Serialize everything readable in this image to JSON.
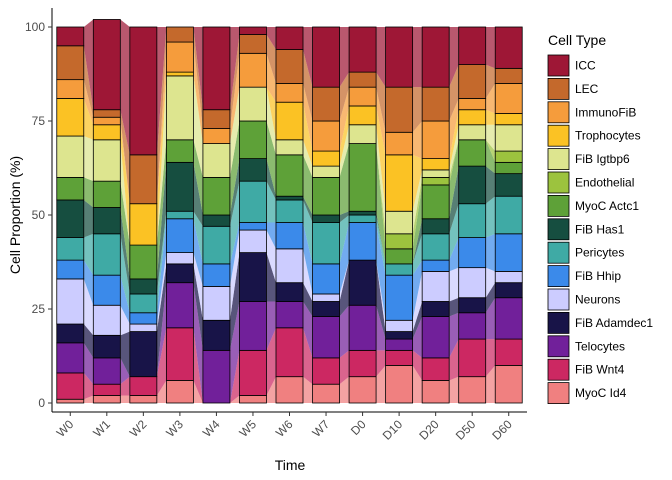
{
  "chart_data": {
    "type": "bar",
    "subtype": "stacked-100-percent-with-alluvial-bands",
    "title": "",
    "xlabel": "Time",
    "ylabel": "Cell Proportion (%)",
    "ylim": [
      0,
      100
    ],
    "yticks": [
      0,
      25,
      50,
      75,
      100
    ],
    "grid": false,
    "legend": {
      "title": "Cell Type",
      "placement": "right"
    },
    "categories": [
      "W0",
      "W1",
      "W2",
      "W3",
      "W4",
      "W5",
      "W6",
      "W7",
      "D0",
      "D10",
      "D20",
      "D50",
      "D60"
    ],
    "series": [
      {
        "name": "MyoC Id4",
        "color": "#F08080",
        "values": [
          1,
          2,
          2,
          6,
          0,
          2,
          7,
          5,
          7,
          10,
          6,
          7,
          10
        ]
      },
      {
        "name": "FiB Wnt4",
        "color": "#CC2862",
        "values": [
          7,
          3,
          5,
          14,
          0,
          12,
          13,
          7,
          7,
          4,
          6,
          10,
          7
        ]
      },
      {
        "name": "Telocytes",
        "color": "#71209A",
        "values": [
          8,
          7,
          0,
          12,
          14,
          13,
          7,
          11,
          12,
          3,
          11,
          7,
          11
        ]
      },
      {
        "name": "FiB Adamdec1",
        "color": "#181448",
        "values": [
          5,
          6,
          12,
          5,
          8,
          13,
          5,
          4,
          12,
          2,
          4,
          4,
          4
        ]
      },
      {
        "name": "Neurons",
        "color": "#CCCCFF",
        "values": [
          12,
          8,
          2,
          3,
          9,
          6,
          9,
          2,
          0,
          3,
          8,
          8,
          3
        ]
      },
      {
        "name": "FiB Hhip",
        "color": "#3B8AEA",
        "values": [
          5,
          8,
          3,
          9,
          6,
          2,
          7,
          8,
          10,
          12,
          3,
          8,
          10
        ]
      },
      {
        "name": "Pericytes",
        "color": "#3FAAA5",
        "values": [
          6,
          11,
          5,
          2,
          10,
          11,
          6,
          11,
          2,
          3,
          7,
          9,
          10
        ]
      },
      {
        "name": "FiB Has1",
        "color": "#164E40",
        "values": [
          10,
          7,
          4,
          13,
          3,
          6,
          1,
          2,
          1,
          0,
          4,
          10,
          6
        ]
      },
      {
        "name": "MyoC Actc1",
        "color": "#5EA138",
        "values": [
          6,
          7,
          9,
          6,
          10,
          10,
          11,
          10,
          18,
          4,
          9,
          7,
          3
        ]
      },
      {
        "name": "Endothelial",
        "color": "#9CC33E",
        "values": [
          0,
          0,
          0,
          0,
          0,
          0,
          0,
          0,
          0,
          4,
          2,
          0,
          3
        ]
      },
      {
        "name": "FiB Igtbp6",
        "color": "#DDE58F",
        "values": [
          11,
          11,
          0,
          17,
          9,
          9,
          4,
          3,
          5,
          6,
          2,
          4,
          7
        ]
      },
      {
        "name": "Trophocytes",
        "color": "#FBC224",
        "values": [
          10,
          4,
          11,
          1,
          0,
          0,
          10,
          4,
          5,
          15,
          3,
          4,
          3
        ]
      },
      {
        "name": "ImmunoFiB",
        "color": "#F59C3C",
        "values": [
          5,
          2,
          0,
          8,
          4,
          9,
          5,
          8,
          5,
          6,
          10,
          3,
          8
        ]
      },
      {
        "name": "LEC",
        "color": "#C4692C",
        "values": [
          9,
          2,
          13,
          4,
          5,
          5,
          9,
          9,
          4,
          12,
          9,
          9,
          4
        ]
      },
      {
        "name": "ICC",
        "color": "#9E1736",
        "values": [
          5,
          24,
          34,
          0,
          22,
          2,
          6,
          16,
          12,
          16,
          16,
          10,
          11
        ]
      }
    ],
    "legend_order": [
      "ICC",
      "LEC",
      "ImmunoFiB",
      "Trophocytes",
      "FiB Igtbp6",
      "Endothelial",
      "MyoC Actc1",
      "FiB Has1",
      "Pericytes",
      "FiB Hhip",
      "Neurons",
      "FiB Adamdec1",
      "Telocytes",
      "FiB Wnt4",
      "MyoC Id4"
    ]
  }
}
